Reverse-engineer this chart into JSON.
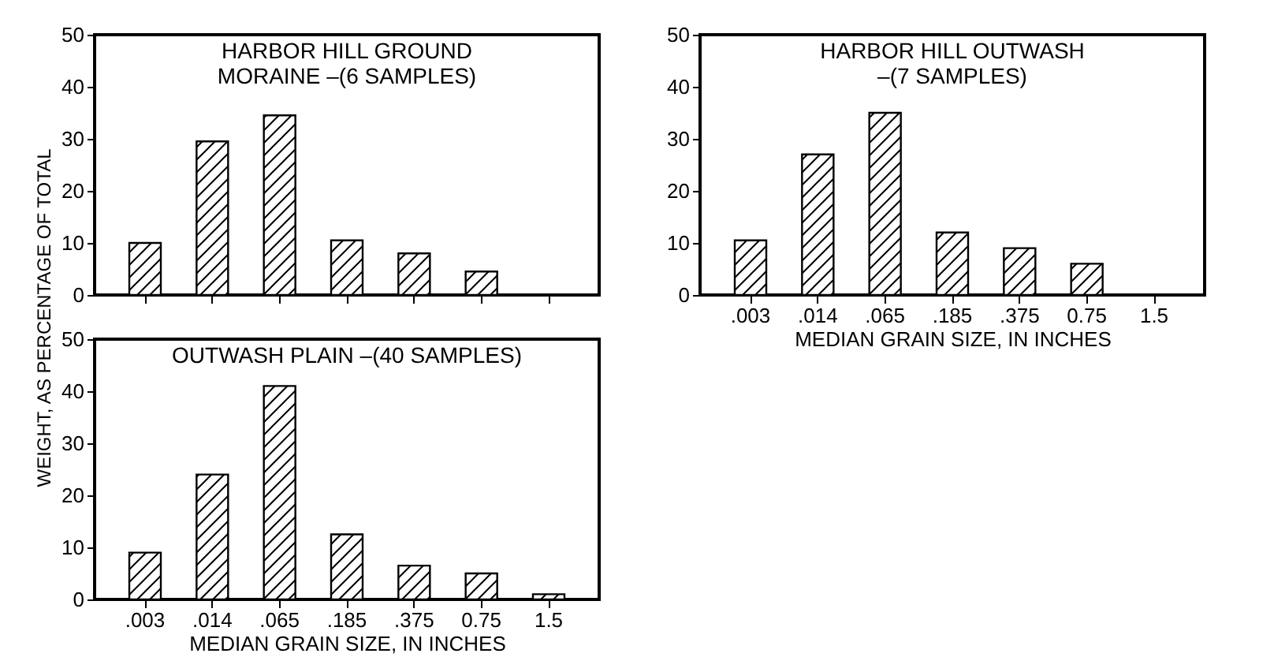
{
  "chart_data": [
    {
      "type": "bar",
      "title": "HARBOR HILL GROUND\nMORAINE –(6 SAMPLES)",
      "ylabel": "WEIGHT, AS PERCENTAGE OF TOTAL",
      "categories": [
        ".003",
        ".014",
        ".065",
        ".185",
        ".375",
        "0.75",
        "1.5"
      ],
      "values": [
        10,
        29.5,
        34.5,
        10.5,
        8,
        4.5,
        0
      ],
      "color": "#000000",
      "ylim": [
        0,
        50
      ],
      "yticks": [
        0,
        10,
        20,
        30,
        40,
        50
      ],
      "tick_labels": "y"
    },
    {
      "type": "bar",
      "title": "HARBOR HILL OUTWASH\n–(7 SAMPLES)",
      "xlabel": "MEDIAN GRAIN SIZE, IN INCHES",
      "categories": [
        ".003",
        ".014",
        ".065",
        ".185",
        ".375",
        "0.75",
        "1.5"
      ],
      "values": [
        10.5,
        27,
        35,
        12,
        9,
        6,
        0
      ],
      "color": "#000000",
      "ylim": [
        0,
        50
      ],
      "yticks": [
        0,
        10,
        20,
        30,
        40,
        50
      ]
    },
    {
      "type": "bar",
      "title": "OUTWASH PLAIN –(40 SAMPLES)",
      "xlabel": "MEDIAN GRAIN SIZE, IN INCHES",
      "categories": [
        ".003",
        ".014",
        ".065",
        ".185",
        ".375",
        "0.75",
        "1.5"
      ],
      "values": [
        9,
        24,
        41,
        12.5,
        6.5,
        5,
        1
      ],
      "color": "#000000",
      "ylim": [
        0,
        50
      ],
      "yticks": [
        0,
        10,
        20,
        30,
        40,
        50
      ]
    }
  ]
}
